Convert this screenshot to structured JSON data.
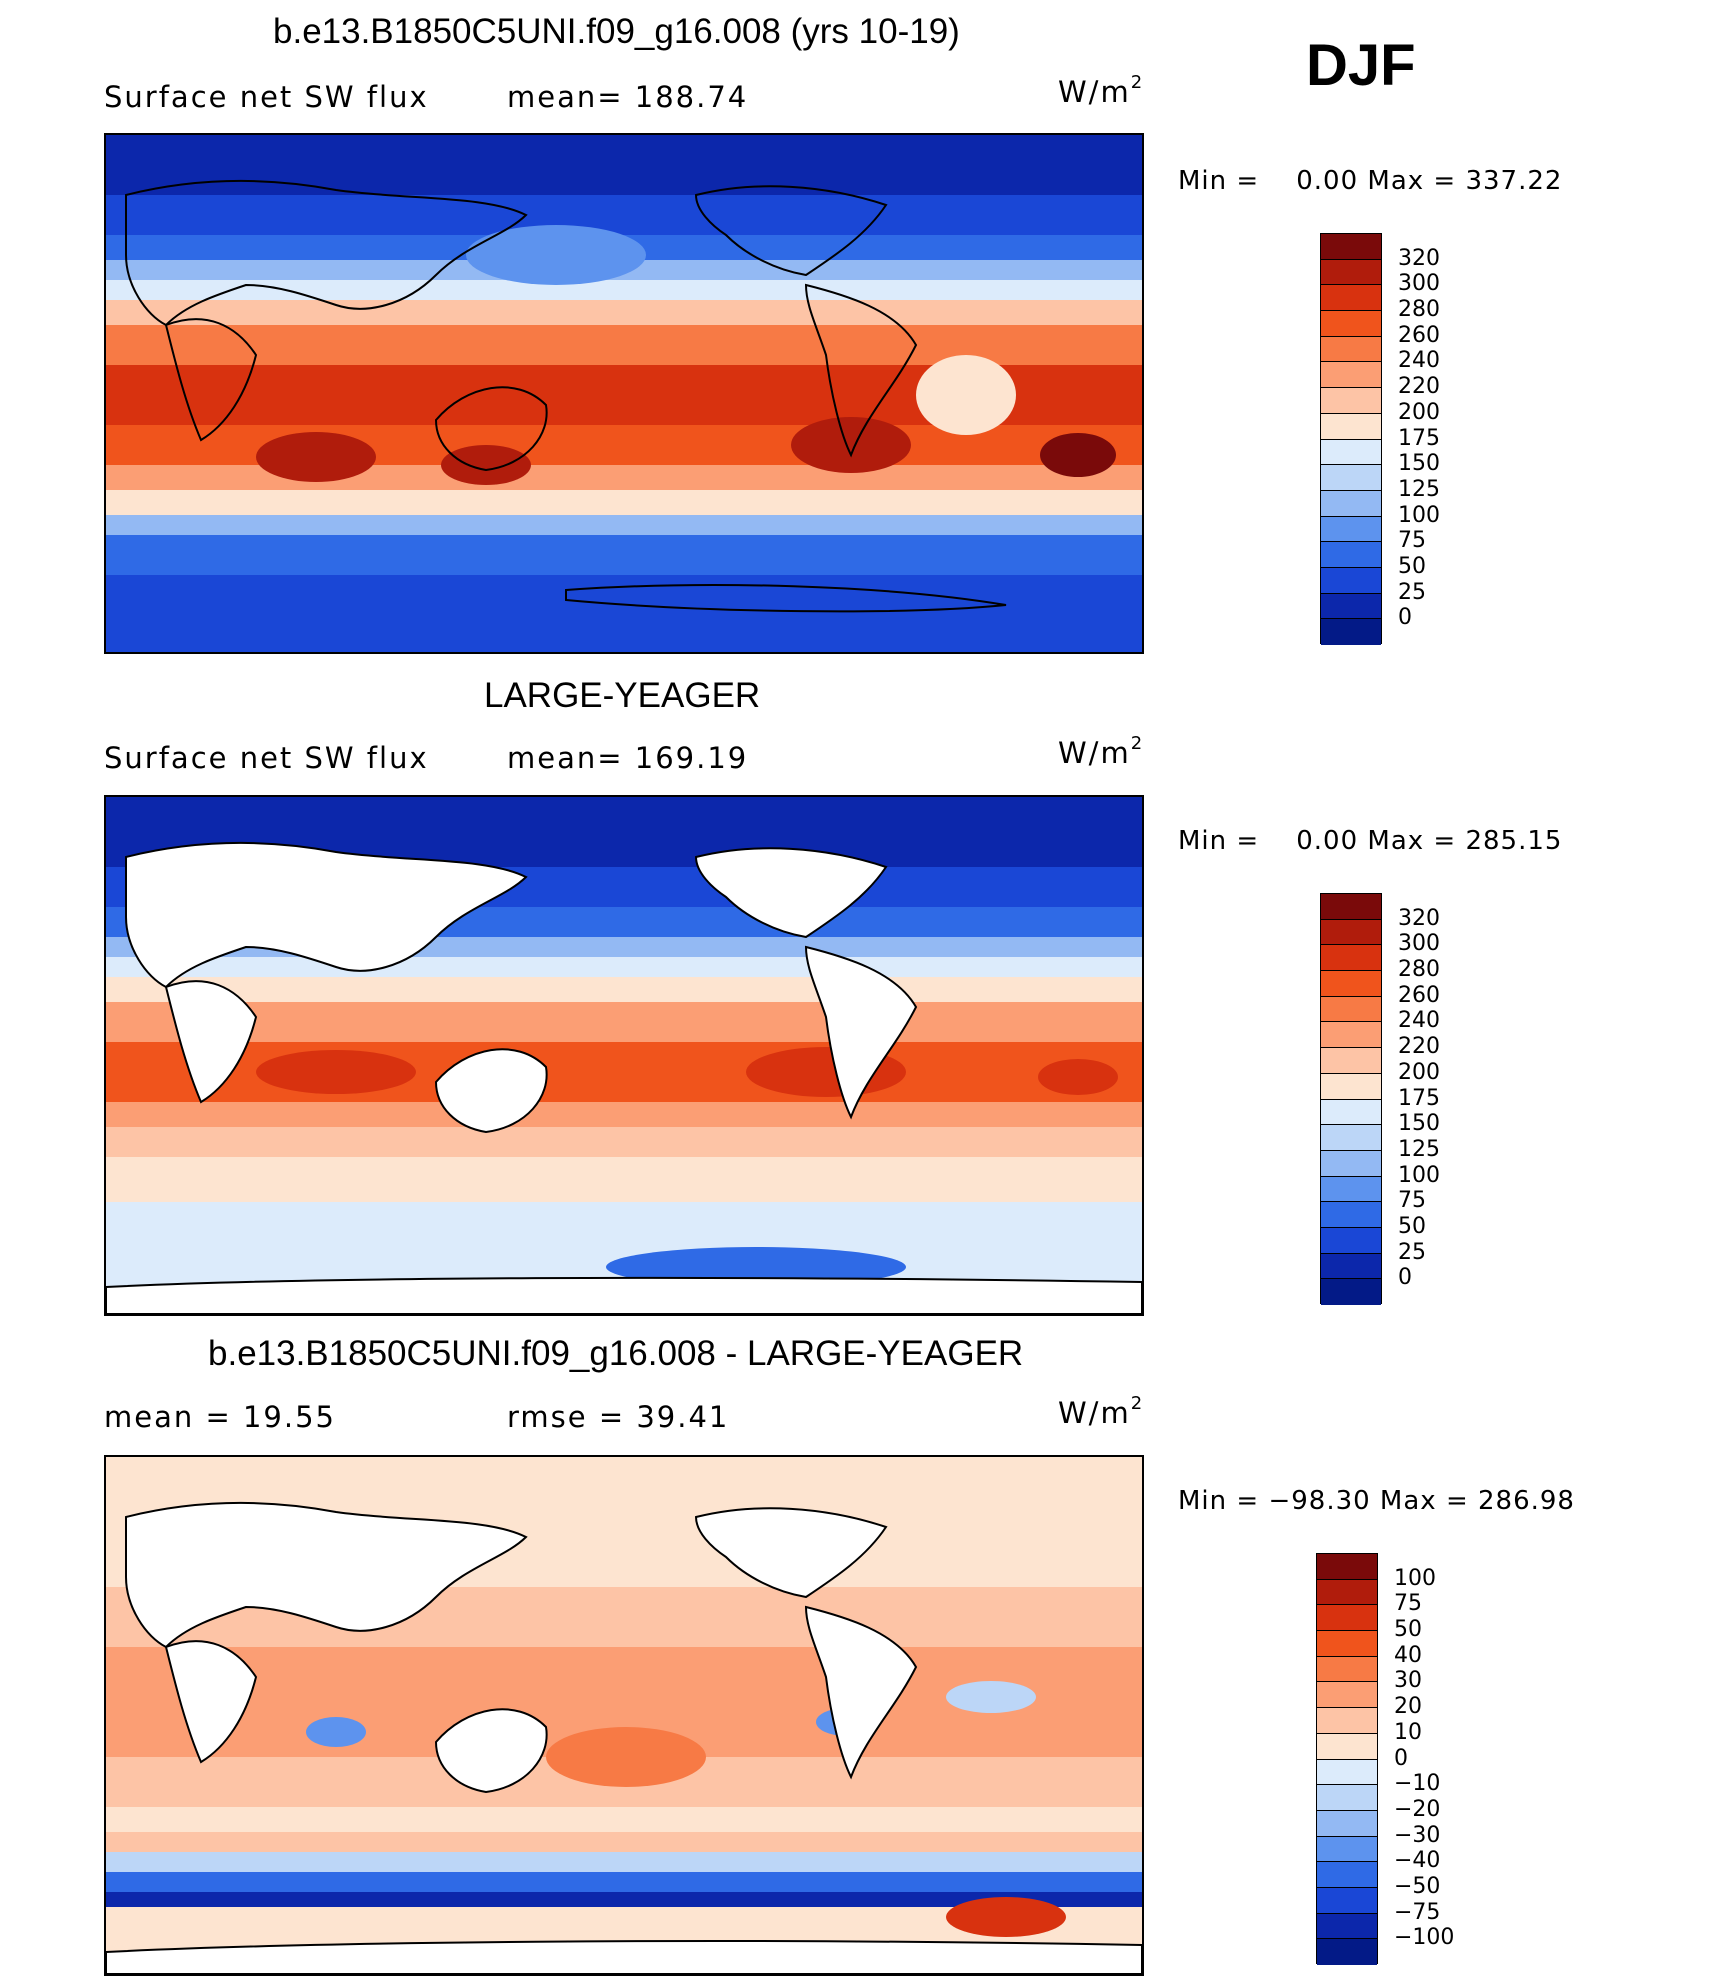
{
  "header": {
    "season": "DJF"
  },
  "units_label": "W/m",
  "units_exp": "2",
  "panels": [
    {
      "title": "b.e13.B1850C5UNI.f09_g16.008 (yrs 10-19)",
      "variable": "Surface net SW flux",
      "stat_left": "mean= 188.74",
      "minmax": "Min =    0.00 Max = 337.22",
      "colorbar_ticks": [
        "320",
        "300",
        "280",
        "260",
        "240",
        "220",
        "200",
        "175",
        "150",
        "125",
        "100",
        "75",
        "50",
        "25",
        "0"
      ]
    },
    {
      "title": "LARGE-YEAGER",
      "variable": "Surface net SW flux",
      "stat_left": "mean= 169.19",
      "minmax": "Min =    0.00 Max = 285.15",
      "colorbar_ticks": [
        "320",
        "300",
        "280",
        "260",
        "240",
        "220",
        "200",
        "175",
        "150",
        "125",
        "100",
        "75",
        "50",
        "25",
        "0"
      ]
    },
    {
      "title": "b.e13.B1850C5UNI.f09_g16.008 - LARGE-YEAGER",
      "variable": "mean =   19.55",
      "stat_left": "rmse =   39.41",
      "minmax": "Min = −98.30 Max = 286.98",
      "colorbar_ticks": [
        "100",
        "75",
        "50",
        "40",
        "30",
        "20",
        "10",
        "0",
        "−10",
        "−20",
        "−30",
        "−40",
        "−50",
        "−75",
        "−100"
      ]
    }
  ],
  "colors": {
    "abs_scale": [
      "#7a0a0a",
      "#b01c0c",
      "#d8320f",
      "#f0541c",
      "#f77a45",
      "#fb9e74",
      "#fdc4a6",
      "#fde4d0",
      "#dcebfb",
      "#bcd6f7",
      "#93b9f3",
      "#5d93ee",
      "#2f6ae6",
      "#1a47d6",
      "#0c27ab",
      "#031a87"
    ],
    "diff_scale": [
      "#7a0a0a",
      "#b01c0c",
      "#d8320f",
      "#f0541c",
      "#f77a45",
      "#fb9e74",
      "#fdc4a6",
      "#fde4d0",
      "#dcebfb",
      "#bcd6f7",
      "#93b9f3",
      "#5d93ee",
      "#2f6ae6",
      "#1a47d6",
      "#0c27ab",
      "#031a87"
    ],
    "land_mask": "#ffffff"
  },
  "chart_data": [
    {
      "type": "heatmap",
      "title": "b.e13.B1850C5UNI.f09_g16.008 (yrs 10-19)",
      "variable": "Surface net SW flux",
      "units": "W/m2",
      "mean": 188.74,
      "min": 0.0,
      "max": 337.22,
      "contour_levels": [
        0,
        25,
        50,
        75,
        100,
        125,
        150,
        175,
        200,
        220,
        240,
        260,
        280,
        300,
        320
      ]
    },
    {
      "type": "heatmap",
      "title": "LARGE-YEAGER",
      "variable": "Surface net SW flux",
      "units": "W/m2",
      "mean": 169.19,
      "min": 0.0,
      "max": 285.15,
      "contour_levels": [
        0,
        25,
        50,
        75,
        100,
        125,
        150,
        175,
        200,
        220,
        240,
        260,
        280,
        300,
        320
      ]
    },
    {
      "type": "heatmap",
      "title": "b.e13.B1850C5UNI.f09_g16.008 - LARGE-YEAGER",
      "units": "W/m2",
      "mean": 19.55,
      "rmse": 39.41,
      "min": -98.3,
      "max": 286.98,
      "contour_levels": [
        -100,
        -75,
        -50,
        -40,
        -30,
        -20,
        -10,
        0,
        10,
        20,
        30,
        40,
        50,
        75,
        100
      ]
    }
  ]
}
